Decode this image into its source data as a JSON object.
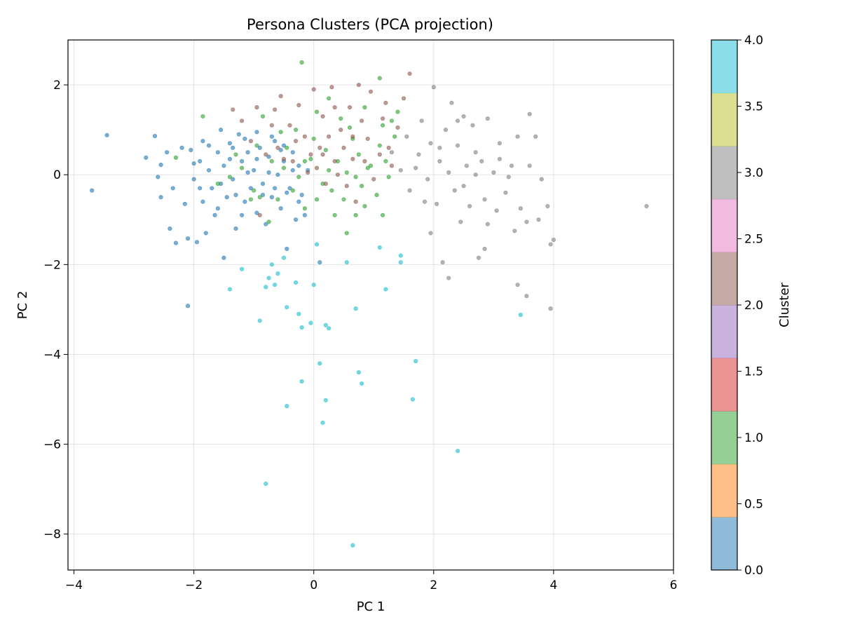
{
  "chart_data": {
    "type": "scatter",
    "title": "Persona Clusters (PCA projection)",
    "xlabel": "PC 1",
    "ylabel": "PC 2",
    "xlim": [
      -4.1,
      6.0
    ],
    "ylim": [
      -8.8,
      3.0
    ],
    "xticks": [
      -4,
      -2,
      0,
      2,
      4,
      6
    ],
    "yticks": [
      -8,
      -6,
      -4,
      -2,
      0,
      2
    ],
    "xtick_labels": [
      "−4",
      "−2",
      "0",
      "2",
      "4",
      "6"
    ],
    "ytick_labels": [
      "−8",
      "−6",
      "−4",
      "−2",
      "0",
      "2"
    ],
    "grid": true,
    "marker_alpha": 0.6,
    "colorbar": {
      "label": "Cluster",
      "range": [
        0.0,
        4.0
      ],
      "ticks": [
        0.0,
        0.5,
        1.0,
        1.5,
        2.0,
        2.5,
        3.0,
        3.5,
        4.0
      ],
      "tick_labels": [
        "0.0",
        "0.5",
        "1.0",
        "1.5",
        "2.0",
        "2.5",
        "3.0",
        "3.5",
        "4.0"
      ],
      "bands": [
        "#1f77b4",
        "#ff7f0e",
        "#2ca02c",
        "#d62728",
        "#9467bd",
        "#8c564b",
        "#e377c2",
        "#7f7f7f",
        "#bcbd22",
        "#17becf"
      ],
      "alpha": 0.5
    },
    "series": [
      {
        "cluster": 0,
        "color": "#1f77b4",
        "points": [
          [
            -3.7,
            -0.35
          ],
          [
            -3.45,
            0.88
          ],
          [
            -2.8,
            0.38
          ],
          [
            -2.65,
            0.86
          ],
          [
            -2.55,
            0.22
          ],
          [
            -2.6,
            -0.05
          ],
          [
            -2.55,
            -0.5
          ],
          [
            -2.45,
            0.5
          ],
          [
            -2.4,
            -1.2
          ],
          [
            -2.35,
            -0.3
          ],
          [
            -2.3,
            -1.52
          ],
          [
            -2.2,
            0.6
          ],
          [
            -2.15,
            -0.65
          ],
          [
            -2.1,
            -1.42
          ],
          [
            -2.05,
            0.55
          ],
          [
            -2.0,
            -0.1
          ],
          [
            -1.95,
            -1.5
          ],
          [
            -1.9,
            0.3
          ],
          [
            -1.85,
            -0.6
          ],
          [
            -1.8,
            -1.3
          ],
          [
            -1.75,
            0.1
          ],
          [
            -1.7,
            -0.3
          ],
          [
            -1.65,
            -0.9
          ],
          [
            -1.6,
            0.5
          ],
          [
            -1.55,
            -0.2
          ],
          [
            -1.5,
            -1.85
          ],
          [
            -1.5,
            0.2
          ],
          [
            -1.45,
            -0.5
          ],
          [
            -1.4,
            0.7
          ],
          [
            -1.35,
            -0.1
          ],
          [
            -1.3,
            -1.2
          ],
          [
            -1.25,
            0.9
          ],
          [
            -1.2,
            0.3
          ],
          [
            -1.15,
            -0.6
          ],
          [
            -1.1,
            0.5
          ],
          [
            -1.05,
            -0.3
          ],
          [
            -1.0,
            0.1
          ],
          [
            -0.95,
            -0.85
          ],
          [
            -0.9,
            0.6
          ],
          [
            -0.85,
            -0.2
          ],
          [
            -0.8,
            -1.1
          ],
          [
            -0.75,
            0.4
          ],
          [
            -0.7,
            -0.5
          ],
          [
            -0.65,
            0.75
          ],
          [
            -0.6,
            0.0
          ],
          [
            -0.55,
            -0.75
          ],
          [
            -0.5,
            0.3
          ],
          [
            -0.45,
            -1.65
          ],
          [
            -0.4,
            -0.3
          ],
          [
            -0.35,
            0.5
          ],
          [
            -0.3,
            -1.0
          ],
          [
            -0.25,
            0.2
          ],
          [
            -0.2,
            -0.45
          ],
          [
            -0.15,
            -0.9
          ],
          [
            -0.1,
            0.1
          ],
          [
            -2.0,
            0.25
          ],
          [
            -1.9,
            -0.3
          ],
          [
            -1.75,
            0.65
          ],
          [
            -1.6,
            -0.75
          ],
          [
            -1.4,
            0.35
          ],
          [
            -1.3,
            -0.45
          ],
          [
            -1.2,
            -0.9
          ],
          [
            -1.1,
            0.05
          ],
          [
            -0.95,
            0.35
          ],
          [
            -0.85,
            -0.45
          ],
          [
            -0.75,
            0.05
          ],
          [
            -0.65,
            -0.3
          ],
          [
            -0.55,
            0.55
          ],
          [
            -0.45,
            -0.4
          ],
          [
            -0.35,
            0.1
          ],
          [
            -0.25,
            -0.6
          ],
          [
            -1.85,
            0.75
          ],
          [
            -1.55,
            1.0
          ],
          [
            -1.35,
            0.6
          ],
          [
            -1.15,
            0.8
          ],
          [
            -0.95,
            0.95
          ],
          [
            -0.7,
            0.85
          ],
          [
            -0.5,
            0.65
          ],
          [
            0.1,
            -1.95
          ],
          [
            -2.1,
            -2.92
          ]
        ]
      },
      {
        "cluster": 1,
        "color": "#2ca02c",
        "points": [
          [
            -2.3,
            0.38
          ],
          [
            -1.85,
            1.3
          ],
          [
            -1.6,
            -0.2
          ],
          [
            -1.4,
            -0.05
          ],
          [
            -1.3,
            0.45
          ],
          [
            -1.0,
            -0.35
          ],
          [
            -0.9,
            -0.5
          ],
          [
            -0.85,
            1.3
          ],
          [
            -0.7,
            0.3
          ],
          [
            -0.6,
            -0.55
          ],
          [
            -0.5,
            0.15
          ],
          [
            -0.45,
            0.6
          ],
          [
            -0.3,
            1.0
          ],
          [
            -0.25,
            -0.05
          ],
          [
            -0.15,
            -0.75
          ],
          [
            -0.05,
            0.35
          ],
          [
            0.05,
            1.4
          ],
          [
            0.15,
            -0.2
          ],
          [
            0.2,
            0.55
          ],
          [
            0.3,
            -0.35
          ],
          [
            0.4,
            0.3
          ],
          [
            0.45,
            1.25
          ],
          [
            0.5,
            -0.55
          ],
          [
            0.55,
            0.05
          ],
          [
            0.65,
            0.8
          ],
          [
            0.7,
            -0.9
          ],
          [
            0.75,
            0.45
          ],
          [
            0.8,
            -0.25
          ],
          [
            0.85,
            1.5
          ],
          [
            0.95,
            0.2
          ],
          [
            1.05,
            -0.45
          ],
          [
            1.1,
            0.65
          ],
          [
            1.15,
            1.1
          ],
          [
            1.25,
            -0.05
          ],
          [
            1.35,
            0.85
          ],
          [
            1.4,
            1.4
          ],
          [
            -0.2,
            2.5
          ],
          [
            0.0,
            0.8
          ],
          [
            0.25,
            1.7
          ],
          [
            0.6,
            1.05
          ],
          [
            1.1,
            2.15
          ],
          [
            -1.05,
            -0.55
          ],
          [
            -0.75,
            -1.05
          ],
          [
            -0.35,
            -0.35
          ],
          [
            0.05,
            -0.55
          ],
          [
            0.35,
            -0.9
          ],
          [
            0.55,
            -1.3
          ],
          [
            0.85,
            -0.7
          ],
          [
            1.15,
            -0.9
          ],
          [
            -1.2,
            0.15
          ],
          [
            -0.95,
            0.65
          ],
          [
            -0.55,
            0.95
          ],
          [
            -0.15,
            0.3
          ],
          [
            0.25,
            0.1
          ],
          [
            0.7,
            -0.05
          ],
          [
            0.9,
            0.15
          ],
          [
            1.2,
            0.3
          ],
          [
            1.3,
            1.2
          ]
        ]
      },
      {
        "cluster": 2,
        "color": "#8c564b",
        "points": [
          [
            -1.35,
            1.45
          ],
          [
            -1.2,
            1.2
          ],
          [
            -1.05,
            0.75
          ],
          [
            -0.95,
            1.5
          ],
          [
            -0.8,
            0.45
          ],
          [
            -0.7,
            1.1
          ],
          [
            -0.6,
            0.6
          ],
          [
            -0.55,
            1.75
          ],
          [
            -0.4,
            1.1
          ],
          [
            -0.35,
            0.3
          ],
          [
            -0.25,
            1.55
          ],
          [
            -0.15,
            0.85
          ],
          [
            -0.05,
            0.45
          ],
          [
            0.0,
            1.9
          ],
          [
            0.1,
            0.6
          ],
          [
            0.15,
            1.3
          ],
          [
            0.2,
            -0.2
          ],
          [
            0.25,
            0.85
          ],
          [
            0.3,
            1.95
          ],
          [
            0.35,
            0.3
          ],
          [
            0.45,
            1.0
          ],
          [
            0.5,
            0.6
          ],
          [
            0.55,
            -0.25
          ],
          [
            0.6,
            1.5
          ],
          [
            0.65,
            0.35
          ],
          [
            0.7,
            -0.6
          ],
          [
            0.75,
            2.0
          ],
          [
            0.8,
            1.2
          ],
          [
            0.9,
            0.8
          ],
          [
            1.0,
            -0.1
          ],
          [
            1.1,
            0.45
          ],
          [
            1.15,
            1.25
          ],
          [
            1.25,
            0.6
          ],
          [
            1.4,
            1.05
          ],
          [
            1.5,
            1.7
          ],
          [
            1.6,
            2.25
          ],
          [
            -0.65,
            1.45
          ],
          [
            -0.1,
            0.05
          ],
          [
            0.35,
            1.5
          ],
          [
            0.95,
            1.85
          ],
          [
            -0.3,
            0.75
          ],
          [
            0.05,
            0.15
          ],
          [
            0.4,
            0.0
          ],
          [
            0.85,
            0.3
          ],
          [
            1.3,
            0.2
          ],
          [
            -0.9,
            -0.9
          ],
          [
            -0.5,
            0.35
          ],
          [
            0.15,
            0.45
          ],
          [
            0.65,
            0.85
          ],
          [
            1.2,
            1.6
          ]
        ]
      },
      {
        "cluster": 3,
        "color": "#7f7f7f",
        "points": [
          [
            1.3,
            0.5
          ],
          [
            1.45,
            0.1
          ],
          [
            1.55,
            0.85
          ],
          [
            1.6,
            -0.35
          ],
          [
            1.75,
            0.45
          ],
          [
            1.8,
            1.2
          ],
          [
            1.9,
            -0.1
          ],
          [
            1.95,
            0.7
          ],
          [
            2.0,
            1.95
          ],
          [
            2.05,
            -0.65
          ],
          [
            2.1,
            0.3
          ],
          [
            2.15,
            -1.95
          ],
          [
            2.2,
            1.0
          ],
          [
            2.25,
            0.05
          ],
          [
            2.3,
            1.6
          ],
          [
            2.35,
            -0.35
          ],
          [
            2.4,
            0.65
          ],
          [
            2.45,
            -1.05
          ],
          [
            2.5,
            1.3
          ],
          [
            2.55,
            0.2
          ],
          [
            2.6,
            -0.7
          ],
          [
            2.65,
            1.1
          ],
          [
            2.7,
            0.5
          ],
          [
            2.75,
            -1.85
          ],
          [
            2.8,
            0.3
          ],
          [
            2.85,
            -0.55
          ],
          [
            2.9,
            1.25
          ],
          [
            3.0,
            0.05
          ],
          [
            3.05,
            -0.8
          ],
          [
            3.1,
            0.7
          ],
          [
            3.2,
            -0.4
          ],
          [
            3.3,
            0.2
          ],
          [
            3.35,
            -1.25
          ],
          [
            3.4,
            0.85
          ],
          [
            3.45,
            -0.75
          ],
          [
            3.55,
            -1.05
          ],
          [
            3.6,
            0.2
          ],
          [
            3.7,
            0.85
          ],
          [
            3.8,
            -0.1
          ],
          [
            3.9,
            -0.7
          ],
          [
            3.95,
            -1.55
          ],
          [
            4.0,
            -1.45
          ],
          [
            5.55,
            -0.7
          ],
          [
            3.4,
            -2.45
          ],
          [
            3.55,
            -2.7
          ],
          [
            3.95,
            -2.98
          ],
          [
            2.25,
            -2.3
          ],
          [
            2.85,
            -1.65
          ],
          [
            1.95,
            -1.3
          ],
          [
            2.5,
            -0.25
          ],
          [
            3.25,
            -0.05
          ],
          [
            3.6,
            1.35
          ],
          [
            2.1,
            0.6
          ],
          [
            1.7,
            0.15
          ],
          [
            2.4,
            1.2
          ],
          [
            2.9,
            -1.1
          ],
          [
            3.1,
            0.35
          ],
          [
            3.75,
            -1.0
          ],
          [
            1.85,
            -0.6
          ],
          [
            2.7,
            0.0
          ]
        ]
      },
      {
        "cluster": 4,
        "color": "#17becf",
        "points": [
          [
            -1.4,
            -2.55
          ],
          [
            -1.2,
            -2.1
          ],
          [
            -0.9,
            -3.25
          ],
          [
            -0.8,
            -2.5
          ],
          [
            -0.75,
            -2.3
          ],
          [
            -0.7,
            -2.0
          ],
          [
            -0.65,
            -2.45
          ],
          [
            -0.5,
            -1.85
          ],
          [
            -0.45,
            -2.95
          ],
          [
            -0.3,
            -2.4
          ],
          [
            -0.25,
            -3.1
          ],
          [
            -0.2,
            -3.4
          ],
          [
            -0.05,
            -3.3
          ],
          [
            0.0,
            -2.45
          ],
          [
            0.1,
            -4.2
          ],
          [
            0.2,
            -3.35
          ],
          [
            0.25,
            -3.42
          ],
          [
            0.55,
            -1.95
          ],
          [
            0.7,
            -2.98
          ],
          [
            0.75,
            -4.4
          ],
          [
            0.8,
            -4.65
          ],
          [
            1.1,
            -1.62
          ],
          [
            1.2,
            -2.55
          ],
          [
            1.45,
            -1.8
          ],
          [
            1.7,
            -4.15
          ],
          [
            1.65,
            -5.0
          ],
          [
            2.4,
            -6.15
          ],
          [
            3.45,
            -3.12
          ],
          [
            -0.2,
            -4.6
          ],
          [
            -0.45,
            -5.15
          ],
          [
            0.15,
            -5.52
          ],
          [
            0.2,
            -5.02
          ],
          [
            -0.8,
            -6.88
          ],
          [
            0.65,
            -8.25
          ],
          [
            -0.6,
            -2.2
          ],
          [
            0.05,
            -1.55
          ],
          [
            1.45,
            -1.95
          ]
        ]
      }
    ]
  }
}
